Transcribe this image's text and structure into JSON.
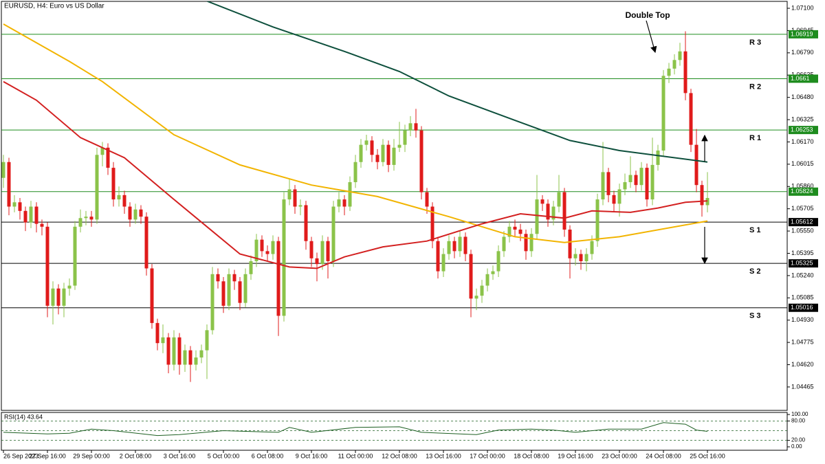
{
  "chart_data": {
    "type": "candlestick",
    "title": "EURUSD, H4:  Euro vs US Dollar",
    "annotation": "Double Top",
    "up_color": "#8bc34a",
    "down_color": "#e01b1b",
    "xlim": [
      -0.375,
      142.5
    ],
    "ylim": [
      1.04302,
      1.07148
    ],
    "xticks": [
      {
        "value": 0,
        "label": "26 Sep 2023"
      },
      {
        "value": 8,
        "label": "27 Sep 16:00"
      },
      {
        "value": 16,
        "label": "29 Sep 00:00"
      },
      {
        "value": 24,
        "label": "2 Oct 08:00"
      },
      {
        "value": 32,
        "label": "3 Oct 16:00"
      },
      {
        "value": 40,
        "label": "5 Oct 00:00"
      },
      {
        "value": 48,
        "label": "6 Oct 08:00"
      },
      {
        "value": 56,
        "label": "9 Oct 16:00"
      },
      {
        "value": 64,
        "label": "11 Oct 00:00"
      },
      {
        "value": 72,
        "label": "12 Oct 08:00"
      },
      {
        "value": 80,
        "label": "13 Oct 16:00"
      },
      {
        "value": 88,
        "label": "17 Oct 00:00"
      },
      {
        "value": 96,
        "label": "18 Oct 08:00"
      },
      {
        "value": 104,
        "label": "19 Oct 16:00"
      },
      {
        "value": 112,
        "label": "23 Oct 00:00"
      },
      {
        "value": 120,
        "label": "24 Oct 08:00"
      },
      {
        "value": 128,
        "label": "25 Oct 16:00"
      }
    ],
    "yticks": [
      {
        "value": 1.071,
        "label": "1.07100"
      },
      {
        "value": 1.06945,
        "label": "1.06945"
      },
      {
        "value": 1.0679,
        "label": "1.06790"
      },
      {
        "value": 1.06635,
        "label": "1.06635"
      },
      {
        "value": 1.0648,
        "label": "1.06480"
      },
      {
        "value": 1.06325,
        "label": "1.06325"
      },
      {
        "value": 1.0617,
        "label": "1.06170"
      },
      {
        "value": 1.06015,
        "label": "1.06015"
      },
      {
        "value": 1.0586,
        "label": "1.05860"
      },
      {
        "value": 1.05705,
        "label": "1.05705"
      },
      {
        "value": 1.0555,
        "label": "1.05550"
      },
      {
        "value": 1.05395,
        "label": "1.05395"
      },
      {
        "value": 1.0524,
        "label": "1.05240"
      },
      {
        "value": 1.05085,
        "label": "1.05085"
      },
      {
        "value": 1.0493,
        "label": "1.04930"
      },
      {
        "value": 1.04775,
        "label": "1.04775"
      },
      {
        "value": 1.0462,
        "label": "1.04620"
      },
      {
        "value": 1.04465,
        "label": "1.04465"
      }
    ],
    "open": [
      1.0592,
      1.0603,
      1.0572,
      1.0575,
      1.0569,
      1.0561,
      1.0572,
      1.056,
      1.0558,
      1.0503,
      1.0515,
      1.0503,
      1.0515,
      1.0517,
      1.0558,
      1.0564,
      1.0565,
      1.0563,
      1.0608,
      1.0613,
      1.0599,
      1.0577,
      1.058,
      1.0572,
      1.0563,
      1.057,
      1.0565,
      1.0529,
      1.0491,
      1.0477,
      1.0481,
      1.0462,
      1.0481,
      1.0462,
      1.0472,
      1.0462,
      1.0467,
      1.0472,
      1.0486,
      1.0525,
      1.052,
      1.0503,
      1.0525,
      1.052,
      1.0505,
      1.0525,
      1.0534,
      1.0549,
      1.0541,
      1.0539,
      1.0548,
      1.0496,
      1.0577,
      1.0584,
      1.0572,
      1.0573,
      1.0548,
      1.0536,
      1.0532,
      1.0548,
      1.0534,
      1.0572,
      1.0577,
      1.0572,
      1.0589,
      1.0603,
      1.0615,
      1.0618,
      1.0608,
      1.0603,
      1.0615,
      1.0601,
      1.0613,
      1.0615,
      1.0625,
      1.063,
      1.0625,
      1.0582,
      1.0572,
      1.0548,
      1.0527,
      1.0539,
      1.0548,
      1.0541,
      1.0551,
      1.0539,
      1.0508,
      1.051,
      1.0517,
      1.0525,
      1.0527,
      1.0541,
      1.0551,
      1.0558,
      1.0556,
      1.0553,
      1.0541,
      1.0553,
      1.0577,
      1.0574,
      1.0563,
      1.0572,
      1.0582,
      1.0556,
      1.0536,
      1.0539,
      1.0534,
      1.0539,
      1.0548,
      1.0577,
      1.0596,
      1.058,
      1.0574,
      1.0584,
      1.0589,
      1.0594,
      1.0587,
      1.0599,
      1.0577,
      1.0601,
      1.0611,
      1.0663,
      1.0668,
      1.0674,
      1.068,
      1.0651,
      1.0615,
      1.0587,
      1.0573
    ],
    "high": [
      1.0608,
      1.0606,
      1.058,
      1.0578,
      1.0572,
      1.0576,
      1.0575,
      1.0563,
      1.0561,
      1.052,
      1.0518,
      1.0519,
      1.0522,
      1.0562,
      1.057,
      1.0569,
      1.0569,
      1.0613,
      1.0617,
      1.0616,
      1.0603,
      1.0586,
      1.0583,
      1.0575,
      1.0574,
      1.0573,
      1.0568,
      1.0532,
      1.0494,
      1.049,
      1.0484,
      1.0486,
      1.0484,
      1.0476,
      1.0475,
      1.0472,
      1.0476,
      1.049,
      1.053,
      1.0529,
      1.0523,
      1.0529,
      1.0528,
      1.0523,
      1.0529,
      1.0538,
      1.0553,
      1.0552,
      1.0545,
      1.0552,
      1.0551,
      1.0582,
      1.0591,
      1.0587,
      1.0577,
      1.0576,
      1.0551,
      1.054,
      1.0552,
      1.0551,
      1.0576,
      1.0582,
      1.058,
      1.0593,
      1.0608,
      1.0619,
      1.0622,
      1.0621,
      1.0612,
      1.0619,
      1.0618,
      1.0619,
      1.0631,
      1.0629,
      1.0635,
      1.064,
      1.0628,
      1.0585,
      1.0575,
      1.0551,
      1.0543,
      1.0552,
      1.0551,
      1.0555,
      1.0554,
      1.0542,
      1.0515,
      1.0521,
      1.0529,
      1.0531,
      1.0545,
      1.0555,
      1.0562,
      1.0563,
      1.056,
      1.0556,
      1.0557,
      1.0594,
      1.058,
      1.0577,
      1.0576,
      1.0594,
      1.0585,
      1.0559,
      1.0543,
      1.0542,
      1.0543,
      1.0552,
      1.0581,
      1.0617,
      1.0599,
      1.0583,
      1.0588,
      1.0595,
      1.0607,
      1.0597,
      1.0603,
      1.0602,
      1.062,
      1.0615,
      1.0667,
      1.0672,
      1.0678,
      1.0686,
      1.0694,
      1.0654,
      1.0626,
      1.059,
      1.0596
    ],
    "low": [
      1.0585,
      1.0566,
      1.0568,
      1.0563,
      1.0555,
      1.0557,
      1.0554,
      1.0552,
      1.0495,
      1.049,
      1.0497,
      1.0495,
      1.051,
      1.0514,
      1.0554,
      1.0559,
      1.0558,
      1.056,
      1.06,
      1.0594,
      1.0572,
      1.0572,
      1.0567,
      1.0558,
      1.056,
      1.056,
      1.0524,
      1.0487,
      1.0472,
      1.047,
      1.0456,
      1.0458,
      1.0455,
      1.0457,
      1.045,
      1.0458,
      1.0463,
      1.0452,
      1.0483,
      1.0515,
      1.0498,
      1.05,
      1.0514,
      1.05,
      1.0502,
      1.0521,
      1.053,
      1.0537,
      1.0534,
      1.0535,
      1.0482,
      1.0492,
      1.0573,
      1.0567,
      1.0566,
      1.0542,
      1.053,
      1.052,
      1.0528,
      1.0522,
      1.053,
      1.0568,
      1.0566,
      1.0569,
      1.0585,
      1.0599,
      1.0611,
      1.0603,
      1.0598,
      1.06,
      1.0596,
      1.0597,
      1.061,
      1.061,
      1.0621,
      1.062,
      1.0577,
      1.0567,
      1.0543,
      1.0522,
      1.0523,
      1.0535,
      1.0536,
      1.0537,
      1.0534,
      1.0495,
      1.05,
      1.0505,
      1.0513,
      1.0521,
      1.0523,
      1.0537,
      1.0547,
      1.0551,
      1.0548,
      1.0535,
      1.0537,
      1.0549,
      1.0569,
      1.0558,
      1.0559,
      1.0568,
      1.0551,
      1.0522,
      1.0531,
      1.0528,
      1.0527,
      1.0535,
      1.0544,
      1.0573,
      1.0575,
      1.0568,
      1.0565,
      1.058,
      1.0585,
      1.0582,
      1.0583,
      1.0572,
      1.0573,
      1.0597,
      1.0607,
      1.0658,
      1.0664,
      1.067,
      1.0646,
      1.061,
      1.0582,
      1.0565,
      1.0568
    ],
    "close": [
      1.0603,
      1.0572,
      1.0575,
      1.0569,
      1.0561,
      1.0572,
      1.056,
      1.0558,
      1.0503,
      1.0515,
      1.0503,
      1.0515,
      1.0517,
      1.0558,
      1.0564,
      1.0565,
      1.0563,
      1.0608,
      1.0613,
      1.0599,
      1.0577,
      1.058,
      1.0572,
      1.0563,
      1.057,
      1.0565,
      1.0529,
      1.0491,
      1.0477,
      1.0481,
      1.0462,
      1.0481,
      1.0462,
      1.0472,
      1.0462,
      1.0467,
      1.0472,
      1.0486,
      1.0525,
      1.052,
      1.0503,
      1.0525,
      1.052,
      1.0505,
      1.0525,
      1.0534,
      1.0549,
      1.0541,
      1.0539,
      1.0548,
      1.0496,
      1.0577,
      1.0584,
      1.0572,
      1.0573,
      1.0548,
      1.0536,
      1.0532,
      1.0548,
      1.0534,
      1.0572,
      1.0577,
      1.0572,
      1.0589,
      1.0603,
      1.0615,
      1.0618,
      1.0608,
      1.0603,
      1.0615,
      1.0601,
      1.0613,
      1.0615,
      1.0625,
      1.063,
      1.0625,
      1.0582,
      1.0572,
      1.0548,
      1.0527,
      1.0539,
      1.0548,
      1.0541,
      1.0551,
      1.0539,
      1.0508,
      1.051,
      1.0517,
      1.0525,
      1.0527,
      1.0541,
      1.0551,
      1.0558,
      1.0556,
      1.0553,
      1.0541,
      1.0553,
      1.0577,
      1.0574,
      1.0563,
      1.0572,
      1.0582,
      1.0556,
      1.0536,
      1.0539,
      1.0534,
      1.0539,
      1.0548,
      1.0577,
      1.0596,
      1.058,
      1.0574,
      1.0584,
      1.0589,
      1.0594,
      1.0587,
      1.0599,
      1.0577,
      1.0601,
      1.0611,
      1.0663,
      1.0668,
      1.0674,
      1.068,
      1.0651,
      1.0615,
      1.0587,
      1.0573,
      1.0578
    ],
    "overlays": [
      {
        "color": "#0d4f3c",
        "x": [
          37,
          49,
          62,
          72,
          81,
          93,
          103,
          112,
          128
        ],
        "values": [
          1.0715,
          1.0697,
          1.068,
          1.0666,
          1.0649,
          1.0632,
          1.0618,
          1.0611,
          1.0603
        ]
      },
      {
        "color": "#f2b400",
        "x": [
          0,
          12,
          18,
          31,
          43,
          56,
          68,
          81,
          93,
          102,
          112,
          128
        ],
        "values": [
          1.0699,
          1.0673,
          1.0659,
          1.0622,
          1.0601,
          1.0587,
          1.0579,
          1.0565,
          1.0551,
          1.0547,
          1.0551,
          1.0562
        ]
      },
      {
        "color": "#d32020",
        "x": [
          0,
          6,
          14,
          22,
          31,
          37,
          43,
          52,
          57,
          62,
          69,
          77,
          87,
          94,
          102,
          107,
          114,
          119,
          124,
          128
        ],
        "values": [
          1.0659,
          1.0646,
          1.062,
          1.0606,
          1.0577,
          1.0558,
          1.0539,
          1.053,
          1.0529,
          1.0537,
          1.0544,
          1.0548,
          1.056,
          1.0567,
          1.0564,
          1.0569,
          1.0568,
          1.0571,
          1.0575,
          1.0576
        ]
      }
    ],
    "levels": [
      {
        "value": 1.06919,
        "name": "R 3",
        "color": "#1e8c1e"
      },
      {
        "value": 1.0661,
        "name": "R 2",
        "color": "#1e8c1e"
      },
      {
        "value": 1.06253,
        "name": "R 1",
        "color": "#1e8c1e"
      },
      {
        "value": 1.05824,
        "color": "#1e8c1e"
      },
      {
        "value": 1.05612,
        "name": "S 1",
        "color": "#000000"
      },
      {
        "value": 1.05325,
        "name": "S 2",
        "color": "#000000"
      },
      {
        "value": 1.05016,
        "name": "S 3",
        "color": "#000000"
      }
    ],
    "rsi": {
      "title": "RSI(14) 43.64",
      "color": "#1b5e20",
      "ylim": [
        -10.6,
        106.4
      ],
      "yticks": [
        {
          "value": 100,
          "label": "100.00"
        },
        {
          "value": 80,
          "label": "80.00"
        },
        {
          "value": 20,
          "label": "20.00"
        },
        {
          "value": 0,
          "label": "0.00"
        }
      ],
      "levels": [
        80,
        50,
        20
      ],
      "x": [
        0,
        8,
        12,
        16,
        20,
        28,
        32,
        40,
        44,
        50,
        52,
        56,
        64,
        72,
        76,
        80,
        86,
        90,
        96,
        100,
        104,
        110,
        116,
        120,
        124,
        126,
        128
      ],
      "values": [
        45,
        40,
        42,
        55,
        50,
        35,
        38,
        50,
        48,
        45,
        60,
        45,
        60,
        62,
        45,
        42,
        38,
        52,
        55,
        52,
        45,
        55,
        55,
        75,
        70,
        52,
        48
      ]
    }
  }
}
